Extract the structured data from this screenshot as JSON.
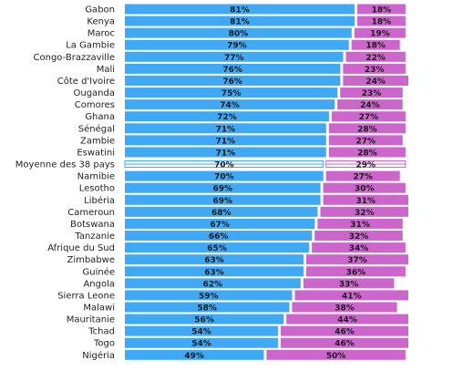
{
  "chart_data": {
    "type": "bar",
    "orientation": "horizontal",
    "stacked": true,
    "value_format": "percent",
    "xlim": [
      0,
      100
    ],
    "categories": [
      "Gabon",
      "Kenya",
      "Maroc",
      "La Gambie",
      "Congo-Brazzaville",
      "Mali",
      "Côte d'Ivoire",
      "Ouganda",
      "Comores",
      "Ghana",
      "Sénégal",
      "Zambie",
      "Eswatini",
      "Moyenne des 38 pays",
      "Namibie",
      "Lesotho",
      "Libéria",
      "Cameroun",
      "Botswana",
      "Tanzanie",
      "Afrique du Sud",
      "Zimbabwe",
      "Guinée",
      "Angola",
      "Sierra Leone",
      "Malawi",
      "Mauritanie",
      "Tchad",
      "Togo",
      "Nigéria"
    ],
    "highlighted_category": "Moyenne des 38 pays",
    "series": [
      {
        "color": "#3fa9f5",
        "values": [
          81,
          81,
          80,
          79,
          77,
          76,
          76,
          75,
          74,
          72,
          71,
          71,
          71,
          70,
          70,
          69,
          69,
          68,
          67,
          66,
          65,
          63,
          63,
          62,
          59,
          58,
          56,
          54,
          54,
          49
        ]
      },
      {
        "color": "#cc66cc",
        "values": [
          18,
          18,
          19,
          18,
          22,
          23,
          24,
          23,
          24,
          27,
          28,
          27,
          28,
          29,
          27,
          30,
          31,
          32,
          31,
          32,
          34,
          37,
          36,
          33,
          41,
          38,
          44,
          46,
          46,
          50
        ]
      }
    ],
    "grid": false,
    "legend": "none"
  }
}
